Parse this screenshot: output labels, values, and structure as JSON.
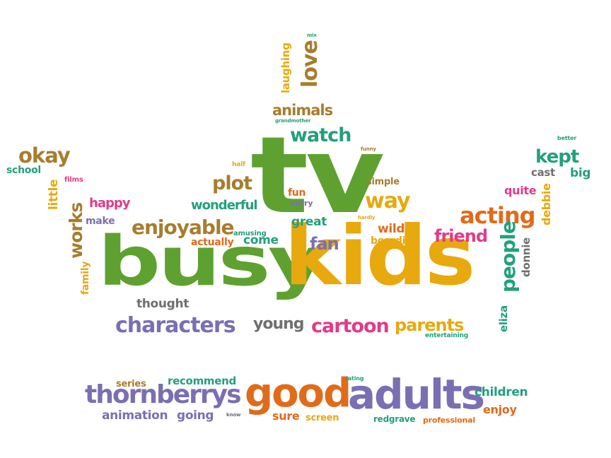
{
  "colors": {
    "green": "#5fa130",
    "gold": "#e7a90e",
    "orange": "#e06b1a",
    "purple": "#7a6fb3",
    "teal": "#23a07c",
    "pink": "#e23b88",
    "brown": "#a77d2d",
    "gray": "#6f6f6f"
  },
  "words": [
    {
      "text": "busy",
      "color": "green"
    },
    {
      "text": "kids",
      "color": "gold"
    },
    {
      "text": "tv",
      "color": "green"
    },
    {
      "text": "good",
      "color": "orange"
    },
    {
      "text": "adults",
      "color": "purple"
    },
    {
      "text": "thornberrys",
      "color": "purple"
    },
    {
      "text": "characters",
      "color": "purple"
    },
    {
      "text": "cartoon",
      "color": "pink"
    },
    {
      "text": "parents",
      "color": "gold"
    },
    {
      "text": "young",
      "color": "gray"
    },
    {
      "text": "acting",
      "color": "orange"
    },
    {
      "text": "enjoyable",
      "color": "brown"
    },
    {
      "text": "people",
      "color": "teal"
    },
    {
      "text": "watch",
      "color": "teal"
    },
    {
      "text": "way",
      "color": "gold"
    },
    {
      "text": "okay",
      "color": "brown"
    },
    {
      "text": "plot",
      "color": "brown"
    },
    {
      "text": "friend",
      "color": "pink"
    },
    {
      "text": "kept",
      "color": "teal"
    },
    {
      "text": "animals",
      "color": "brown"
    },
    {
      "text": "love",
      "color": "brown"
    },
    {
      "text": "works",
      "color": "brown"
    },
    {
      "text": "wonderful",
      "color": "teal"
    },
    {
      "text": "happy",
      "color": "pink"
    },
    {
      "text": "fan",
      "color": "purple"
    },
    {
      "text": "great",
      "color": "teal"
    },
    {
      "text": "come",
      "color": "teal"
    },
    {
      "text": "thought",
      "color": "gray"
    },
    {
      "text": "wild",
      "color": "orange"
    },
    {
      "text": "boarding",
      "color": "gold"
    },
    {
      "text": "actually",
      "color": "orange"
    },
    {
      "text": "fun",
      "color": "orange"
    },
    {
      "text": "curry",
      "color": "purple"
    },
    {
      "text": "simple",
      "color": "brown"
    },
    {
      "text": "amusing",
      "color": "teal"
    },
    {
      "text": "quite",
      "color": "pink"
    },
    {
      "text": "cast",
      "color": "gray"
    },
    {
      "text": "big",
      "color": "teal"
    },
    {
      "text": "debbie",
      "color": "gold"
    },
    {
      "text": "donnie",
      "color": "gray"
    },
    {
      "text": "eliza",
      "color": "teal"
    },
    {
      "text": "entertaining",
      "color": "teal"
    },
    {
      "text": "laughing",
      "color": "gold"
    },
    {
      "text": "mix",
      "color": "teal"
    },
    {
      "text": "grandmother",
      "color": "teal"
    },
    {
      "text": "half",
      "color": "gold"
    },
    {
      "text": "funny",
      "color": "brown"
    },
    {
      "text": "hardly",
      "color": "gold"
    },
    {
      "text": "better",
      "color": "teal"
    },
    {
      "text": "school",
      "color": "teal"
    },
    {
      "text": "little",
      "color": "gold"
    },
    {
      "text": "films",
      "color": "pink"
    },
    {
      "text": "make",
      "color": "purple"
    },
    {
      "text": "family",
      "color": "gold"
    },
    {
      "text": "animation",
      "color": "purple"
    },
    {
      "text": "going",
      "color": "purple"
    },
    {
      "text": "series",
      "color": "brown"
    },
    {
      "text": "recommend",
      "color": "teal"
    },
    {
      "text": "sure",
      "color": "orange"
    },
    {
      "text": "screen",
      "color": "gold"
    },
    {
      "text": "rating",
      "color": "teal"
    },
    {
      "text": "know",
      "color": "gray"
    },
    {
      "text": "children",
      "color": "teal"
    },
    {
      "text": "enjoy",
      "color": "orange"
    },
    {
      "text": "redgrave",
      "color": "teal"
    },
    {
      "text": "professional",
      "color": "orange"
    }
  ]
}
